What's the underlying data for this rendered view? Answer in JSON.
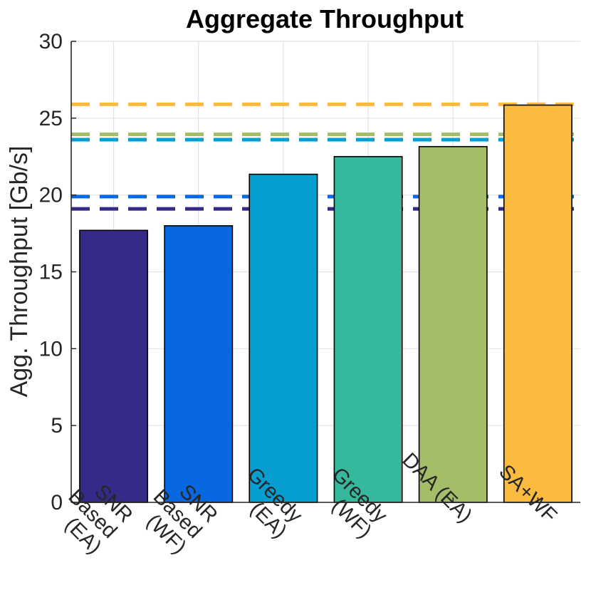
{
  "chart_data": {
    "type": "bar",
    "title": "Aggregate Throughput",
    "xlabel": "",
    "ylabel": "Agg. Throughput [Gb/s]",
    "ylim": [
      0,
      30
    ],
    "yticks": [
      0,
      5,
      10,
      15,
      20,
      25,
      30
    ],
    "grid": true,
    "categories": [
      [
        "SNR",
        "Based",
        "(EA)"
      ],
      [
        "SNR",
        "Based",
        "(WF)"
      ],
      [
        "Greedy",
        "(EA)"
      ],
      [
        "Greedy",
        "(WF)"
      ],
      [
        "DAA (EA)"
      ],
      [
        "SA+WF"
      ]
    ],
    "values": [
      17.7,
      18.0,
      21.35,
      22.5,
      23.15,
      25.85
    ],
    "reference_lines": [
      19.1,
      19.9,
      23.6,
      23.95,
      25.9
    ],
    "colors": {
      "bars": [
        "#352A87",
        "#0868E1",
        "#069DD0",
        "#36B89C",
        "#A4BE67",
        "#FBBB3E"
      ],
      "reference_lines": [
        "#352A87",
        "#0868E1",
        "#069DD0",
        "#A4BE67",
        "#FBBB3E"
      ],
      "bar_edge": "#000000",
      "grid": "#E3E3E3",
      "axis": "#262626"
    }
  }
}
